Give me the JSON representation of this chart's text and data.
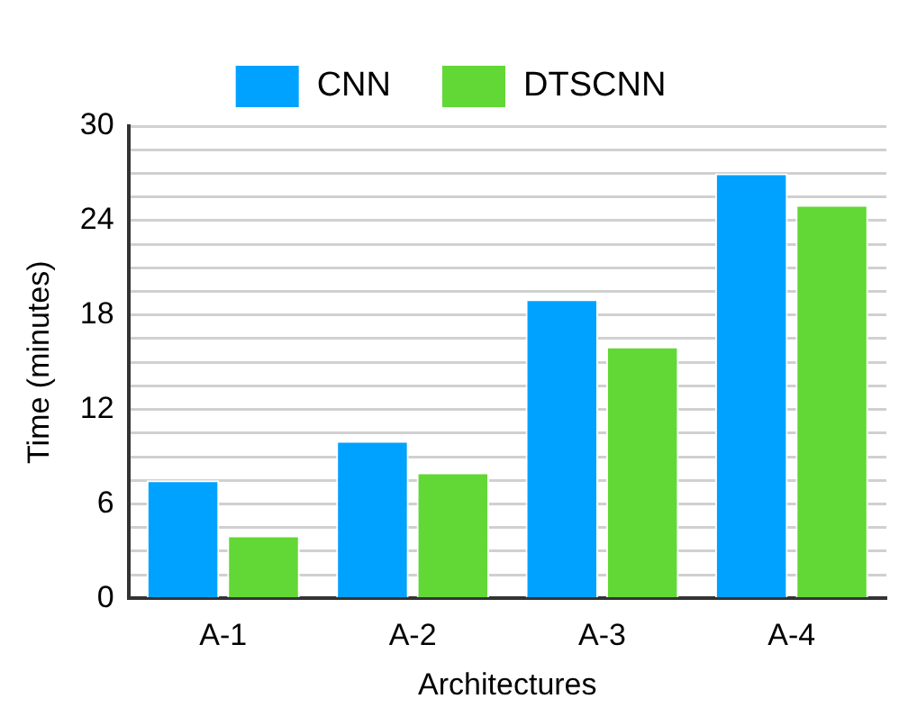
{
  "chart_data": {
    "type": "bar",
    "xlabel": "Architectures",
    "ylabel": "Time (minutes)",
    "categories": [
      "A-1",
      "A-2",
      "A-3",
      "A-4"
    ],
    "series": [
      {
        "name": "CNN",
        "color": "#00a2ff",
        "values": [
          7.5,
          10,
          19,
          27
        ]
      },
      {
        "name": "DTSCNN",
        "color": "#61d836",
        "values": [
          4,
          8,
          16,
          25
        ]
      }
    ],
    "ylim": [
      0,
      30
    ],
    "yticks": [
      0,
      {
        "value": 1.5,
        "label": null
      },
      {
        "value": 3,
        "label": null
      },
      {
        "value": 4.5,
        "label": null
      },
      6,
      {
        "value": 7.5,
        "label": null
      },
      {
        "value": 9,
        "label": null
      },
      {
        "value": 10.5,
        "label": null
      },
      12,
      {
        "value": 13.5,
        "label": null
      },
      {
        "value": 15,
        "label": null
      },
      {
        "value": 16.5,
        "label": null
      },
      18,
      {
        "value": 19.5,
        "label": null
      },
      {
        "value": 21,
        "label": null
      },
      {
        "value": 22.5,
        "label": null
      },
      24,
      {
        "value": 25.5,
        "label": null
      },
      {
        "value": 27,
        "label": null
      },
      {
        "value": 28.5,
        "label": null
      },
      30
    ],
    "grid": "y",
    "legend": "top"
  }
}
